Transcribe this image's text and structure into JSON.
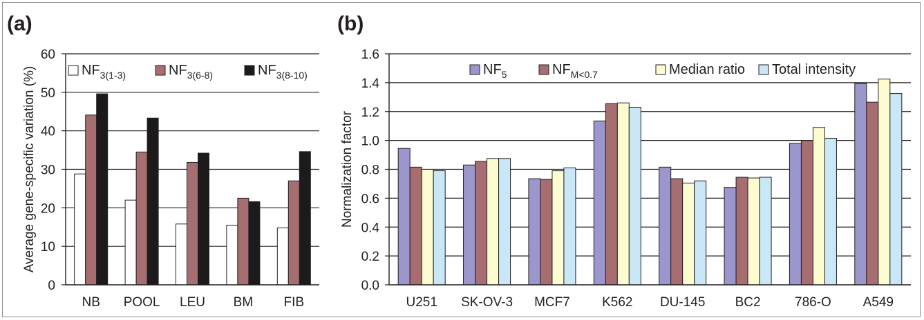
{
  "chart_data": [
    {
      "panel_label": "(a)",
      "type": "bar",
      "categories": [
        "NB",
        "POOL",
        "LEU",
        "BM",
        "FIB"
      ],
      "ylabel": "Average gene-specific variation (%)",
      "xlabel": "",
      "ylim": [
        0,
        60
      ],
      "yticks": [
        0,
        10,
        20,
        30,
        40,
        50,
        60
      ],
      "grid": true,
      "legend_position": "top",
      "series": [
        {
          "name": "NF3(1-3)",
          "legend_base": "NF",
          "legend_sub": "3(1-3)",
          "color": "#ffffff",
          "values": [
            28.8,
            22.0,
            15.8,
            15.5,
            14.8
          ]
        },
        {
          "name": "NF3(6-8)",
          "legend_base": "NF",
          "legend_sub": "3(6-8)",
          "color": "#a66e70",
          "values": [
            44.1,
            34.5,
            31.8,
            22.5,
            27.0
          ]
        },
        {
          "name": "NF3(8-10)",
          "legend_base": "NF",
          "legend_sub": "3(8-10)",
          "color": "#1c1a1b",
          "values": [
            49.6,
            43.3,
            34.2,
            21.6,
            34.6
          ]
        }
      ]
    },
    {
      "panel_label": "(b)",
      "type": "bar",
      "categories": [
        "U251",
        "SK-OV-3",
        "MCF7",
        "K562",
        "DU-145",
        "BC2",
        "786-O",
        "A549"
      ],
      "ylabel": "Normalization factor",
      "xlabel": "",
      "ylim": [
        0.0,
        1.6
      ],
      "yticks": [
        "0.0",
        "0.2",
        "0.4",
        "0.6",
        "0.8",
        "1.0",
        "1.2",
        "1.4",
        "1.6"
      ],
      "grid": true,
      "legend_position": "top",
      "series": [
        {
          "name": "NF5",
          "legend_base": "NF",
          "legend_sub": "5",
          "color": "#9b97cc",
          "values": [
            0.945,
            0.83,
            0.735,
            1.135,
            0.815,
            0.675,
            0.98,
            1.395
          ]
        },
        {
          "name": "NFM<0.7",
          "legend_base": "NF",
          "legend_sub": "M<0.7",
          "color": "#a66e70",
          "values": [
            0.815,
            0.855,
            0.73,
            1.255,
            0.735,
            0.745,
            1.0,
            1.265
          ]
        },
        {
          "name": "Median ratio",
          "legend_base": "Median ratio",
          "legend_sub": "",
          "color": "#fdfbd0",
          "values": [
            0.8,
            0.875,
            0.79,
            1.26,
            0.705,
            0.74,
            1.09,
            1.425
          ]
        },
        {
          "name": "Total intensity",
          "legend_base": "Total intensity",
          "legend_sub": "",
          "color": "#c9e7f6",
          "values": [
            0.79,
            0.875,
            0.81,
            1.23,
            0.72,
            0.745,
            1.015,
            1.325
          ]
        }
      ]
    }
  ]
}
